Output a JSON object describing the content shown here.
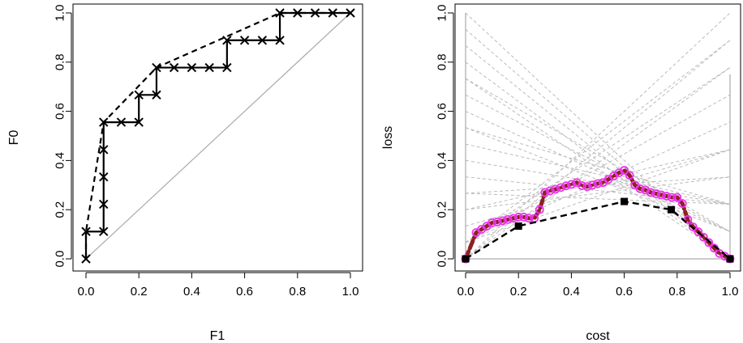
{
  "colors": {
    "axis": "#000000",
    "diagonal": "#aaaaaa",
    "cost_lines": "#bbbbbb",
    "loss_points": "#ee33ee",
    "loss_curve": "#8b2222",
    "hull_points": "#000000"
  },
  "chart_data": [
    {
      "type": "line",
      "xlabel": "F1",
      "ylabel": "F0",
      "xlim": [
        0,
        1
      ],
      "ylim": [
        0,
        1
      ],
      "xticks": [
        "0.0",
        "0.2",
        "0.4",
        "0.6",
        "0.8",
        "1.0"
      ],
      "yticks": [
        "0.0",
        "0.2",
        "0.4",
        "0.6",
        "0.8",
        "1.0"
      ],
      "grid": false,
      "series": [
        {
          "style": "solid-step-with-x-markers",
          "x": [
            0,
            0,
            0.0667,
            0.0667,
            0.0667,
            0.0667,
            0.0667,
            0.1333,
            0.2,
            0.2,
            0.2667,
            0.2667,
            0.3333,
            0.4,
            0.4667,
            0.5333,
            0.5333,
            0.6,
            0.6667,
            0.7333,
            0.7333,
            0.8,
            0.8667,
            0.9333,
            1.0
          ],
          "y": [
            0,
            0.1111,
            0.1111,
            0.2222,
            0.3333,
            0.4444,
            0.5556,
            0.5556,
            0.5556,
            0.6667,
            0.6667,
            0.7778,
            0.7778,
            0.7778,
            0.7778,
            0.7778,
            0.8889,
            0.8889,
            0.8889,
            0.8889,
            1.0,
            1.0,
            1.0,
            1.0,
            1.0
          ]
        },
        {
          "style": "dashed-convex-hull",
          "x": [
            0,
            0,
            0.0667,
            0.2667,
            0.7333,
            1.0
          ],
          "y": [
            0,
            0.1111,
            0.5556,
            0.7778,
            1.0,
            1.0
          ]
        },
        {
          "style": "diagonal-reference",
          "x": [
            0,
            1
          ],
          "y": [
            0,
            1
          ]
        }
      ]
    },
    {
      "type": "line",
      "xlabel": "cost",
      "ylabel": "loss",
      "xlim": [
        0,
        1
      ],
      "ylim": [
        0,
        1
      ],
      "xticks": [
        "0.0",
        "0.2",
        "0.4",
        "0.6",
        "0.8",
        "1.0"
      ],
      "yticks": [
        "0.0",
        "0.2",
        "0.4",
        "0.6",
        "0.8",
        "1.0"
      ],
      "grid": false,
      "cost_lines": [
        {
          "y0": 0.0,
          "y1": 1.0
        },
        {
          "y0": 0.0,
          "y1": 0.889
        },
        {
          "y0": 0.0,
          "y1": 0.778
        },
        {
          "y0": 0.0667,
          "y1": 0.444
        },
        {
          "y0": 0.0667,
          "y1": 0.556
        },
        {
          "y0": 0.0667,
          "y1": 0.667
        },
        {
          "y0": 0.0667,
          "y1": 0.778
        },
        {
          "y0": 0.0667,
          "y1": 0.889
        },
        {
          "y0": 0.1333,
          "y1": 0.444
        },
        {
          "y0": 0.2,
          "y1": 0.444
        },
        {
          "y0": 0.2,
          "y1": 0.333
        },
        {
          "y0": 0.2667,
          "y1": 0.333
        },
        {
          "y0": 0.2667,
          "y1": 0.222
        },
        {
          "y0": 0.3333,
          "y1": 0.222
        },
        {
          "y0": 0.4,
          "y1": 0.222
        },
        {
          "y0": 0.4667,
          "y1": 0.222
        },
        {
          "y0": 0.5333,
          "y1": 0.222
        },
        {
          "y0": 0.5333,
          "y1": 0.111
        },
        {
          "y0": 0.6,
          "y1": 0.111
        },
        {
          "y0": 0.6667,
          "y1": 0.111
        },
        {
          "y0": 0.7333,
          "y1": 0.111
        },
        {
          "y0": 0.7333,
          "y1": 0.0
        },
        {
          "y0": 0.8,
          "y1": 0.0
        },
        {
          "y0": 0.8667,
          "y1": 0.0
        },
        {
          "y0": 0.9333,
          "y1": 0.0
        },
        {
          "y0": 1.0,
          "y1": 0.0
        }
      ],
      "loss_points_x": [
        0.0,
        0.04,
        0.06,
        0.08,
        0.1,
        0.12,
        0.14,
        0.16,
        0.18,
        0.2,
        0.22,
        0.24,
        0.26,
        0.28,
        0.3,
        0.32,
        0.34,
        0.36,
        0.38,
        0.4,
        0.42,
        0.44,
        0.46,
        0.48,
        0.5,
        0.52,
        0.54,
        0.56,
        0.58,
        0.6,
        0.62,
        0.64,
        0.66,
        0.68,
        0.7,
        0.72,
        0.74,
        0.76,
        0.78,
        0.8,
        0.82,
        0.84,
        0.86,
        0.88,
        0.9,
        0.92,
        0.94,
        0.96,
        0.98,
        1.0
      ],
      "loss_points_y": [
        0.0,
        0.107,
        0.12,
        0.133,
        0.147,
        0.15,
        0.155,
        0.16,
        0.165,
        0.17,
        0.17,
        0.165,
        0.165,
        0.2,
        0.27,
        0.277,
        0.283,
        0.29,
        0.297,
        0.303,
        0.31,
        0.298,
        0.294,
        0.3,
        0.306,
        0.31,
        0.323,
        0.337,
        0.35,
        0.36,
        0.34,
        0.3,
        0.285,
        0.28,
        0.27,
        0.265,
        0.26,
        0.255,
        0.25,
        0.25,
        0.225,
        0.16,
        0.13,
        0.11,
        0.088,
        0.066,
        0.044,
        0.022,
        0.011,
        0.0
      ],
      "hull_curve": {
        "x": [
          0,
          0.2,
          0.6,
          0.7778,
          1.0
        ],
        "y": [
          0,
          0.1333,
          0.2333,
          0.2,
          0
        ]
      }
    }
  ]
}
